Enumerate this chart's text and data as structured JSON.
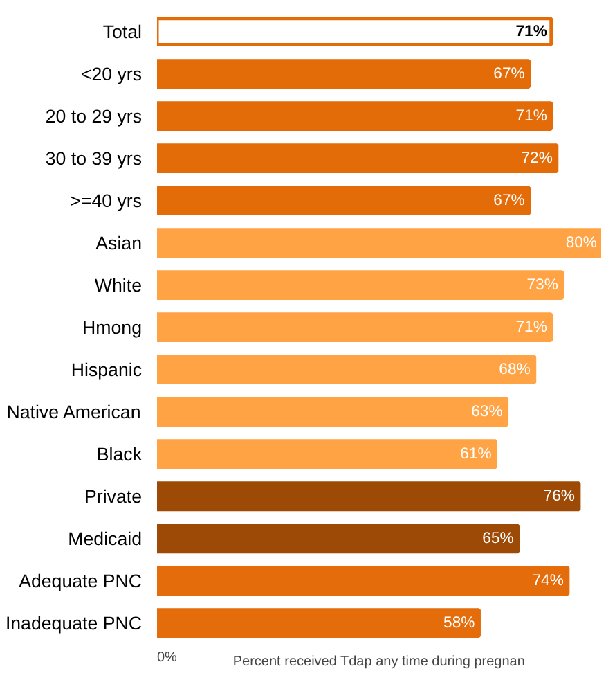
{
  "chart_data": {
    "type": "bar",
    "orientation": "horizontal",
    "xlabel": "Percent received Tdap any time during pregnan",
    "categories": [
      "Total",
      "<20 yrs",
      "20 to 29 yrs",
      "30 to 39 yrs",
      ">=40 yrs",
      "Asian",
      "White",
      "Hmong",
      "Hispanic",
      "Native American",
      "Black",
      "Private",
      "Medicaid",
      "Adequate PNC",
      "Inadequate PNC"
    ],
    "values": [
      71,
      67,
      71,
      72,
      67,
      80,
      73,
      71,
      68,
      63,
      61,
      76,
      65,
      74,
      58
    ],
    "value_labels": [
      "71%",
      "67%",
      "71%",
      "72%",
      "67%",
      "80%",
      "73%",
      "71%",
      "68%",
      "63%",
      "61%",
      "76%",
      "65%",
      "74%",
      "58%"
    ],
    "colors": [
      "#ffffff",
      "#e36c09",
      "#e36c09",
      "#e36c09",
      "#e36c09",
      "#ffa345",
      "#ffa345",
      "#ffa345",
      "#ffa345",
      "#ffa345",
      "#ffa345",
      "#9c4a06",
      "#9c4a06",
      "#e46c0a",
      "#e46c0a"
    ],
    "annotations": [
      "0%"
    ],
    "grid": false
  }
}
